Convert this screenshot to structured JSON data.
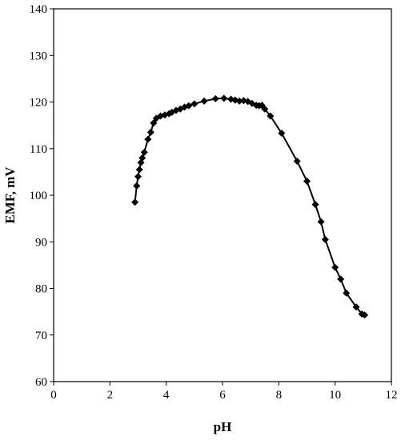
{
  "chart_data": {
    "type": "scatter",
    "title": "",
    "xlabel": "pH",
    "ylabel": "EMF, mV",
    "xlim": [
      0,
      12
    ],
    "ylim": [
      60,
      140
    ],
    "xticks": [
      0,
      2,
      4,
      6,
      8,
      10,
      12
    ],
    "yticks": [
      60,
      70,
      80,
      90,
      100,
      110,
      120,
      130,
      140
    ],
    "grid": false,
    "legend": "none",
    "marker": "diamond",
    "line": "connected",
    "color": "#000000",
    "series": [
      {
        "x": [
          2.89,
          2.95,
          3.0,
          3.05,
          3.1,
          3.15,
          3.22,
          3.35,
          3.45,
          3.55,
          3.65,
          3.8,
          3.95,
          4.1,
          4.2,
          4.35,
          4.5,
          4.65,
          4.8,
          5.0,
          5.35,
          5.75,
          6.05,
          6.3,
          6.45,
          6.6,
          6.75,
          6.9,
          7.05,
          7.2,
          7.3,
          7.4,
          7.5,
          7.7,
          8.1,
          8.65,
          9.0,
          9.3,
          9.5,
          9.65,
          10.0,
          10.2,
          10.4,
          10.75,
          10.95,
          11.05
        ],
        "y": [
          98.5,
          102.0,
          104.0,
          105.5,
          107.0,
          108.0,
          109.2,
          112.0,
          113.5,
          115.5,
          116.5,
          117.0,
          117.2,
          117.5,
          117.8,
          118.2,
          118.5,
          118.9,
          119.2,
          119.6,
          120.2,
          120.7,
          120.8,
          120.6,
          120.4,
          120.2,
          120.3,
          120.1,
          119.7,
          119.3,
          119.2,
          119.3,
          118.5,
          117.0,
          113.3,
          107.3,
          103.0,
          98.0,
          94.3,
          90.5,
          84.5,
          82.0,
          79.0,
          76.0,
          74.5,
          74.3
        ]
      }
    ]
  }
}
